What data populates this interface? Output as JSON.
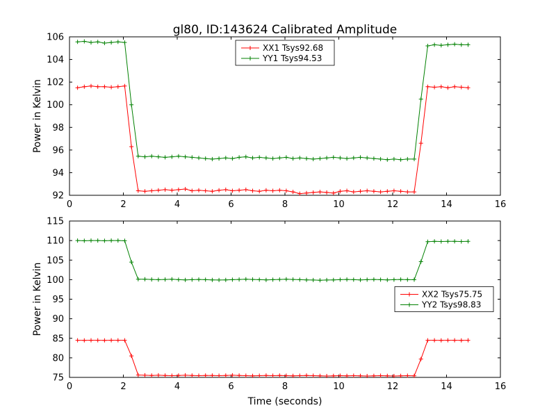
{
  "figure_title": "gl80, ID:143624 Calibrated Amplitude",
  "colors": {
    "xx_series": "#ff0000",
    "yy_series": "#008000",
    "axis": "#000000",
    "background": "#ffffff"
  },
  "chart_data": [
    {
      "type": "line",
      "ylabel": "Power in Kelvin",
      "xlabel": "",
      "xlim": [
        0,
        16
      ],
      "ylim": [
        92,
        106
      ],
      "xticks": [
        0,
        2,
        4,
        6,
        8,
        10,
        12,
        14,
        16
      ],
      "yticks": [
        92,
        94,
        96,
        98,
        100,
        102,
        104,
        106
      ],
      "legend_position": "upper center",
      "marker": "plus",
      "grid": false,
      "x": [
        0.3,
        0.55,
        0.8,
        1.05,
        1.3,
        1.55,
        1.8,
        2.05,
        2.3,
        2.55,
        2.8,
        3.05,
        3.3,
        3.55,
        3.8,
        4.05,
        4.3,
        4.55,
        4.8,
        5.05,
        5.3,
        5.55,
        5.8,
        6.05,
        6.3,
        6.55,
        6.8,
        7.05,
        7.3,
        7.55,
        7.8,
        8.05,
        8.3,
        8.55,
        8.8,
        9.05,
        9.3,
        9.55,
        9.8,
        10.05,
        10.3,
        10.55,
        10.8,
        11.05,
        11.3,
        11.55,
        11.8,
        12.05,
        12.3,
        12.55,
        12.8,
        13.05,
        13.3,
        13.55,
        13.8,
        14.05,
        14.3,
        14.55,
        14.8
      ],
      "series": [
        {
          "name": "XX1 Tsys92.68",
          "color": "#ff0000",
          "values": [
            101.5,
            101.6,
            101.65,
            101.6,
            101.6,
            101.55,
            101.6,
            101.65,
            96.3,
            92.4,
            92.35,
            92.4,
            92.45,
            92.5,
            92.45,
            92.5,
            92.55,
            92.4,
            92.45,
            92.4,
            92.35,
            92.45,
            92.5,
            92.4,
            92.45,
            92.5,
            92.4,
            92.35,
            92.45,
            92.4,
            92.45,
            92.4,
            92.3,
            92.15,
            92.2,
            92.25,
            92.3,
            92.25,
            92.2,
            92.35,
            92.4,
            92.3,
            92.35,
            92.4,
            92.35,
            92.3,
            92.35,
            92.4,
            92.35,
            92.3,
            92.3,
            96.6,
            101.6,
            101.55,
            101.6,
            101.5,
            101.6,
            101.55,
            101.5
          ]
        },
        {
          "name": "YY1 Tsys94.53",
          "color": "#008000",
          "values": [
            105.55,
            105.6,
            105.5,
            105.55,
            105.45,
            105.5,
            105.55,
            105.5,
            100.0,
            95.45,
            95.4,
            95.45,
            95.4,
            95.35,
            95.4,
            95.45,
            95.4,
            95.35,
            95.3,
            95.25,
            95.2,
            95.25,
            95.3,
            95.25,
            95.35,
            95.4,
            95.3,
            95.35,
            95.3,
            95.25,
            95.3,
            95.35,
            95.25,
            95.3,
            95.25,
            95.2,
            95.25,
            95.3,
            95.35,
            95.3,
            95.25,
            95.3,
            95.35,
            95.3,
            95.25,
            95.2,
            95.15,
            95.2,
            95.15,
            95.2,
            95.2,
            100.5,
            105.2,
            105.3,
            105.25,
            105.3,
            105.35,
            105.3,
            105.3
          ]
        }
      ]
    },
    {
      "type": "line",
      "ylabel": "Power in Kelvin",
      "xlabel": "Time (seconds)",
      "xlim": [
        0,
        16
      ],
      "ylim": [
        75,
        115
      ],
      "xticks": [
        0,
        2,
        4,
        6,
        8,
        10,
        12,
        14,
        16
      ],
      "yticks": [
        75,
        80,
        85,
        90,
        95,
        100,
        105,
        110,
        115
      ],
      "legend_position": "center right",
      "marker": "plus",
      "grid": false,
      "x": [
        0.3,
        0.55,
        0.8,
        1.05,
        1.3,
        1.55,
        1.8,
        2.05,
        2.3,
        2.55,
        2.8,
        3.05,
        3.3,
        3.55,
        3.8,
        4.05,
        4.3,
        4.55,
        4.8,
        5.05,
        5.3,
        5.55,
        5.8,
        6.05,
        6.3,
        6.55,
        6.8,
        7.05,
        7.3,
        7.55,
        7.8,
        8.05,
        8.3,
        8.55,
        8.8,
        9.05,
        9.3,
        9.55,
        9.8,
        10.05,
        10.3,
        10.55,
        10.8,
        11.05,
        11.3,
        11.55,
        11.8,
        12.05,
        12.3,
        12.55,
        12.8,
        13.05,
        13.3,
        13.55,
        13.8,
        14.05,
        14.3,
        14.55,
        14.8
      ],
      "series": [
        {
          "name": "XX2 Tsys75.75",
          "color": "#ff0000",
          "values": [
            84.5,
            84.45,
            84.5,
            84.5,
            84.45,
            84.5,
            84.5,
            84.5,
            80.5,
            75.6,
            75.55,
            75.5,
            75.55,
            75.5,
            75.45,
            75.5,
            75.55,
            75.5,
            75.45,
            75.5,
            75.5,
            75.45,
            75.5,
            75.55,
            75.5,
            75.45,
            75.4,
            75.45,
            75.5,
            75.45,
            75.5,
            75.45,
            75.4,
            75.45,
            75.5,
            75.45,
            75.4,
            75.35,
            75.4,
            75.45,
            75.4,
            75.45,
            75.4,
            75.35,
            75.4,
            75.45,
            75.4,
            75.35,
            75.4,
            75.45,
            75.4,
            79.7,
            84.5,
            84.5,
            84.45,
            84.5,
            84.5,
            84.45,
            84.5
          ]
        },
        {
          "name": "YY2 Tsys98.83",
          "color": "#008000",
          "values": [
            110.0,
            109.95,
            110.0,
            110.0,
            109.95,
            110.0,
            110.0,
            109.95,
            104.5,
            100.1,
            100.1,
            100.05,
            100.0,
            100.05,
            100.1,
            100.0,
            99.95,
            100.0,
            100.05,
            100.0,
            99.95,
            99.9,
            99.95,
            100.0,
            100.05,
            100.1,
            100.05,
            100.0,
            99.95,
            100.0,
            100.05,
            100.1,
            100.05,
            100.0,
            99.95,
            99.9,
            99.85,
            99.9,
            99.95,
            100.0,
            100.05,
            100.0,
            99.95,
            100.0,
            100.05,
            100.0,
            99.95,
            100.0,
            100.05,
            100.0,
            100.0,
            104.6,
            109.7,
            109.8,
            109.75,
            109.8,
            109.8,
            109.75,
            109.8
          ]
        }
      ]
    }
  ]
}
